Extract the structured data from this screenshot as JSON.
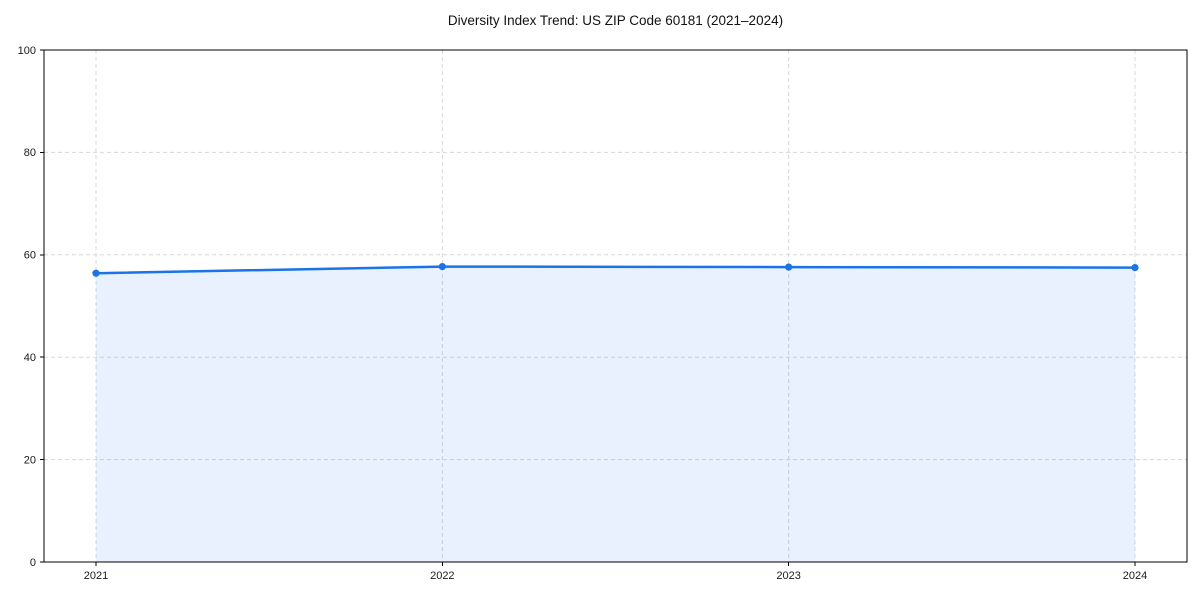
{
  "chart_data": {
    "type": "area",
    "title": "Diversity Index Trend: US ZIP Code 60181 (2021–2024)",
    "x": [
      2021,
      2022,
      2023,
      2024
    ],
    "xtick_labels": [
      "2021",
      "2022",
      "2023",
      "2024"
    ],
    "values": [
      56.4,
      57.7,
      57.6,
      57.5
    ],
    "xlabel": "",
    "ylabel": "",
    "ylim": [
      0,
      100
    ],
    "yticks": [
      0,
      20,
      40,
      60,
      80,
      100
    ],
    "grid": "dashed, both axes",
    "legend_position": "none",
    "colors": {
      "line": "#1a73e8",
      "marker": "#1a73e8",
      "fill": "rgba(26,115,232,0.10)",
      "grid": "#d8d8d8",
      "axis": "#000000",
      "tick_label": "#1a1a1a",
      "title": "#111111",
      "background": "#ffffff"
    }
  }
}
